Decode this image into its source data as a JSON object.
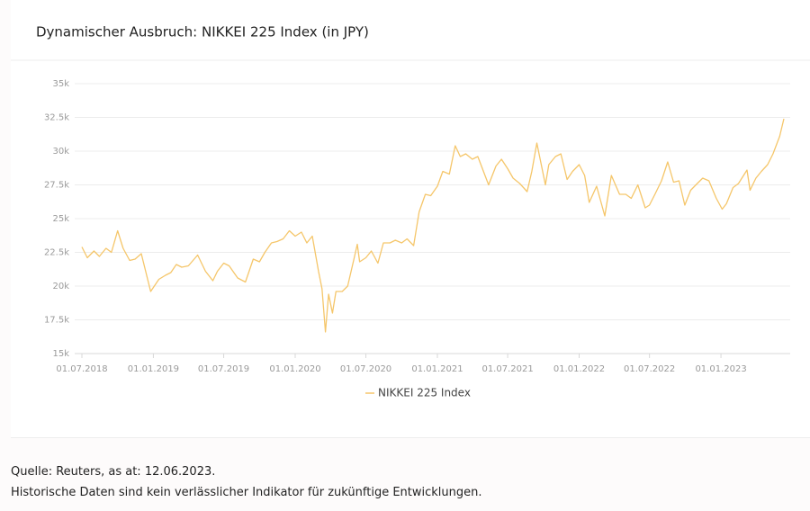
{
  "chart_data": {
    "type": "line",
    "title": "Dynamischer Ausbruch: NIKKEI 225 Index (in JPY)",
    "x": [
      "2018-07-01",
      "2018-07-15",
      "2018-08-01",
      "2018-08-15",
      "2018-09-01",
      "2018-09-15",
      "2018-10-01",
      "2018-10-15",
      "2018-11-01",
      "2018-11-15",
      "2018-12-01",
      "2018-12-25",
      "2019-01-15",
      "2019-02-01",
      "2019-02-15",
      "2019-03-01",
      "2019-03-15",
      "2019-04-01",
      "2019-04-25",
      "2019-05-15",
      "2019-06-03",
      "2019-06-15",
      "2019-07-01",
      "2019-07-15",
      "2019-08-06",
      "2019-08-26",
      "2019-09-15",
      "2019-10-01",
      "2019-10-15",
      "2019-11-01",
      "2019-11-15",
      "2019-12-01",
      "2019-12-17",
      "2020-01-01",
      "2020-01-17",
      "2020-01-31",
      "2020-02-14",
      "2020-03-01",
      "2020-03-10",
      "2020-03-19",
      "2020-03-27",
      "2020-04-06",
      "2020-04-15",
      "2020-05-01",
      "2020-05-15",
      "2020-06-01",
      "2020-06-09",
      "2020-06-15",
      "2020-07-01",
      "2020-07-15",
      "2020-08-01",
      "2020-08-15",
      "2020-09-01",
      "2020-09-15",
      "2020-10-01",
      "2020-10-15",
      "2020-11-01",
      "2020-11-15",
      "2020-12-01",
      "2020-12-15",
      "2021-01-01",
      "2021-01-15",
      "2021-02-01",
      "2021-02-16",
      "2021-03-01",
      "2021-03-15",
      "2021-04-01",
      "2021-04-15",
      "2021-05-13",
      "2021-06-01",
      "2021-06-15",
      "2021-07-01",
      "2021-07-15",
      "2021-08-01",
      "2021-08-20",
      "2021-09-01",
      "2021-09-14",
      "2021-10-06",
      "2021-10-15",
      "2021-11-01",
      "2021-11-15",
      "2021-12-01",
      "2021-12-15",
      "2022-01-01",
      "2022-01-15",
      "2022-01-27",
      "2022-02-15",
      "2022-03-08",
      "2022-03-25",
      "2022-04-15",
      "2022-05-01",
      "2022-05-15",
      "2022-06-01",
      "2022-06-20",
      "2022-07-01",
      "2022-07-15",
      "2022-08-01",
      "2022-08-17",
      "2022-09-01",
      "2022-09-15",
      "2022-09-30",
      "2022-10-15",
      "2022-11-01",
      "2022-11-15",
      "2022-12-01",
      "2022-12-20",
      "2023-01-04",
      "2023-01-15",
      "2023-02-01",
      "2023-02-15",
      "2023-03-09",
      "2023-03-17",
      "2023-04-01",
      "2023-04-15",
      "2023-05-01",
      "2023-05-15",
      "2023-06-01",
      "2023-06-12"
    ],
    "series": [
      {
        "name": "NIKKEI 225 Index",
        "color": "#f5c66a",
        "values": [
          22900,
          22100,
          22600,
          22200,
          22800,
          22500,
          24100,
          22800,
          21900,
          22000,
          22400,
          19600,
          20500,
          20800,
          21000,
          21600,
          21400,
          21500,
          22300,
          21100,
          20400,
          21100,
          21700,
          21500,
          20600,
          20300,
          22000,
          21800,
          22500,
          23200,
          23300,
          23500,
          24100,
          23700,
          24000,
          23200,
          23700,
          21100,
          19800,
          16600,
          19400,
          18000,
          19600,
          19600,
          20000,
          22100,
          23100,
          21800,
          22100,
          22600,
          21700,
          23200,
          23200,
          23400,
          23200,
          23500,
          23000,
          25500,
          26800,
          26700,
          27400,
          28500,
          28300,
          30400,
          29600,
          29800,
          29400,
          29600,
          27500,
          28900,
          29400,
          28700,
          28000,
          27600,
          27000,
          28500,
          30600,
          27500,
          29000,
          29600,
          29800,
          27900,
          28500,
          29000,
          28200,
          26200,
          27400,
          25200,
          28200,
          26800,
          26800,
          26500,
          27500,
          25800,
          26000,
          26800,
          27800,
          29200,
          27700,
          27800,
          26000,
          27100,
          27600,
          28000,
          27800,
          26500,
          25700,
          26100,
          27300,
          27600,
          28600,
          27100,
          28000,
          28500,
          29000,
          29800,
          31100,
          32400
        ]
      }
    ],
    "xlim": [
      "2018-07-01",
      "2023-06-12"
    ],
    "xticks": [
      {
        "value": "2018-07-01",
        "label": "01.07.2018"
      },
      {
        "value": "2019-01-01",
        "label": "01.01.2019"
      },
      {
        "value": "2019-07-01",
        "label": "01.07.2019"
      },
      {
        "value": "2020-01-01",
        "label": "01.01.2020"
      },
      {
        "value": "2020-07-01",
        "label": "01.07.2020"
      },
      {
        "value": "2021-01-01",
        "label": "01.01.2021"
      },
      {
        "value": "2021-07-01",
        "label": "01.07.2021"
      },
      {
        "value": "2022-01-01",
        "label": "01.01.2022"
      },
      {
        "value": "2022-07-01",
        "label": "01.07.2022"
      },
      {
        "value": "2023-01-01",
        "label": "01.01.2023"
      }
    ],
    "ylim": [
      15000,
      35000
    ],
    "yticks": [
      {
        "value": 15000,
        "label": "15k"
      },
      {
        "value": 17500,
        "label": "17.5k"
      },
      {
        "value": 20000,
        "label": "20k"
      },
      {
        "value": 22500,
        "label": "22.5k"
      },
      {
        "value": 25000,
        "label": "25k"
      },
      {
        "value": 27500,
        "label": "27.5k"
      },
      {
        "value": 30000,
        "label": "30k"
      },
      {
        "value": 32500,
        "label": "32.5k"
      },
      {
        "value": 35000,
        "label": "35k"
      }
    ],
    "grid": true,
    "legend": "bottom"
  },
  "footer": {
    "source": "Quelle: Reuters, as at: 12.06.2023.",
    "disclaimer": "Historische Daten sind kein verlässlicher Indikator für zukünftige Entwicklungen."
  }
}
